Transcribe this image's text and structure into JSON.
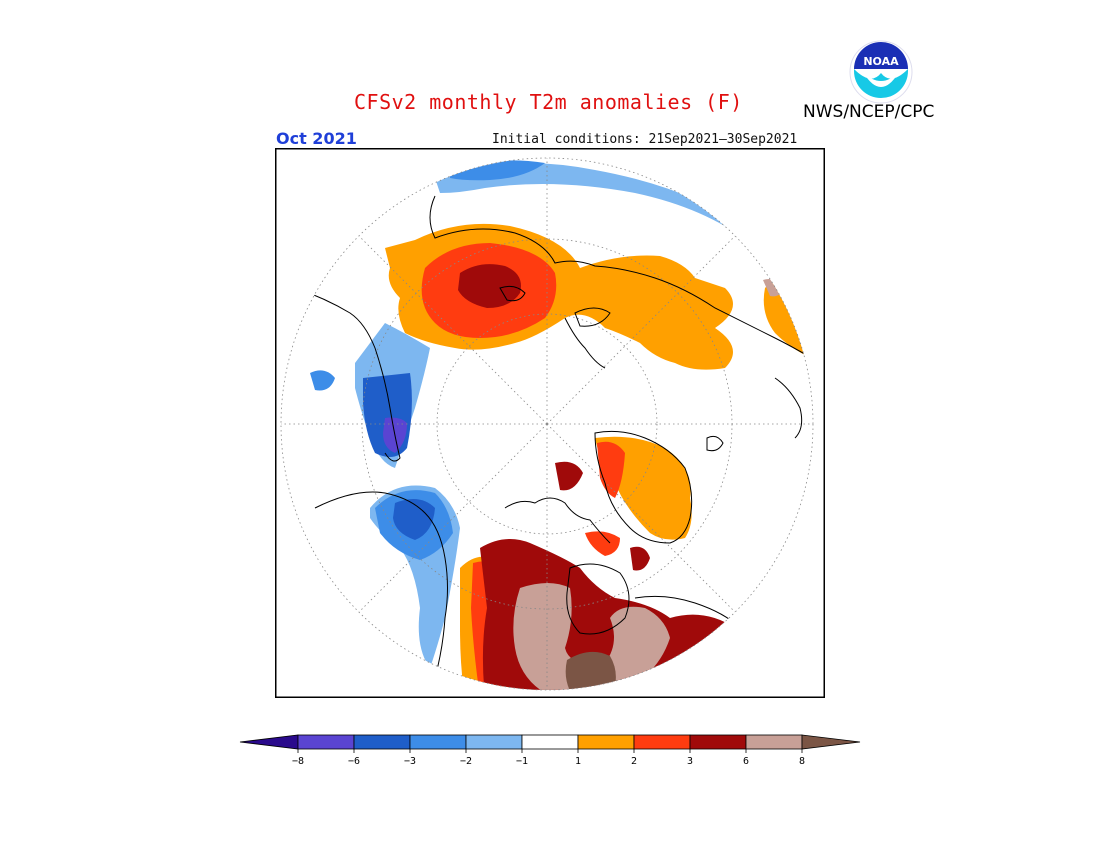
{
  "header": {
    "title": "CFSv2 monthly T2m anomalies (F)",
    "target_month": "Oct 2021",
    "initial_conditions": "Initial conditions: 21Sep2021—30Sep2021",
    "agency": "NWS/NCEP/CPC",
    "logo_text": "NOAA"
  },
  "colorbar": {
    "tick_labels": [
      "−8",
      "−6",
      "−3",
      "−2",
      "−1",
      "1",
      "2",
      "3",
      "6",
      "8"
    ],
    "colors": [
      "#2a0a8c",
      "#5a44d2",
      "#1f5ec9",
      "#3d8de8",
      "#7db7f0",
      "#ffffff",
      "#ffa000",
      "#ff3c10",
      "#a00a0a",
      "#c8a097",
      "#7b5545"
    ]
  },
  "map": {
    "projection": "north-polar-stereographic",
    "palette": {
      "cold_strong": "#5a44d2",
      "cold_moderate": "#1f5ec9",
      "cold_mid": "#3d8de8",
      "cold_light": "#7db7f0",
      "warm_light": "#ffa000",
      "warm_mid": "#ff3c10",
      "warm_strong": "#a00a0a",
      "warm_very_strong": "#c8a097",
      "warm_extreme": "#7b5545"
    }
  }
}
